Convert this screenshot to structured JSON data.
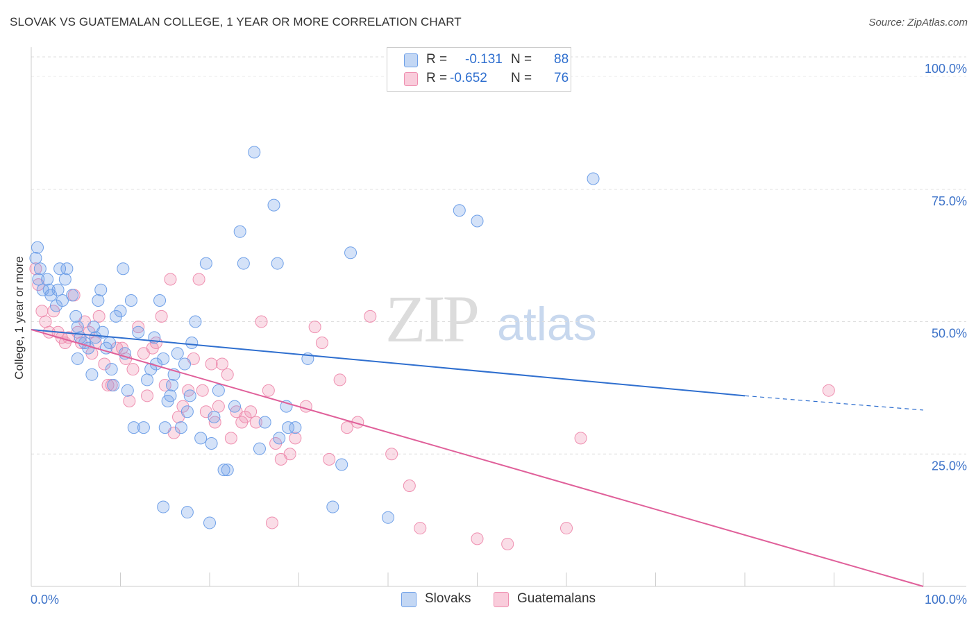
{
  "title": "SLOVAK VS GUATEMALAN COLLEGE, 1 YEAR OR MORE CORRELATION CHART",
  "source": "Source: ZipAtlas.com",
  "watermark": {
    "zip": "ZIP",
    "atlas": "atlas"
  },
  "legend": {
    "rows": [
      {
        "r_label": "R =",
        "r_value": "-0.131",
        "n_label": "N =",
        "n_value": "88",
        "color": "#6fa0e8"
      },
      {
        "r_label": "R =",
        "r_value": "-0.652",
        "n_label": "N =",
        "n_value": "76",
        "color": "#ef8fb0"
      }
    ]
  },
  "bottom_legend": [
    {
      "label": "Slovaks",
      "color": "#6fa0e8"
    },
    {
      "label": "Guatemalans",
      "color": "#ef8fb0"
    }
  ],
  "chart_data": {
    "type": "scatter",
    "title": "SLOVAK VS GUATEMALAN COLLEGE, 1 YEAR OR MORE CORRELATION CHART",
    "xlabel": "",
    "ylabel": "College, 1 year or more",
    "xlim": [
      0,
      100
    ],
    "ylim": [
      0,
      100
    ],
    "x_tick_labels": [
      "0.0%",
      "100.0%"
    ],
    "y_ticks": [
      25,
      50,
      75,
      100
    ],
    "y_tick_labels": [
      "25.0%",
      "50.0%",
      "75.0%",
      "100.0%"
    ],
    "grid": true,
    "series": [
      {
        "name": "Slovaks",
        "color": "#6fa0e8",
        "line_color": "#2f6fcf",
        "trend": {
          "x_start": 0,
          "y_start": 48.5,
          "x_end": 80,
          "y_end": 36.0,
          "dash_to_x": 100,
          "dash_y_end": 33.3
        },
        "points": [
          [
            0.5,
            62
          ],
          [
            0.7,
            64
          ],
          [
            0.8,
            58
          ],
          [
            1,
            60
          ],
          [
            1.3,
            56
          ],
          [
            1.8,
            58
          ],
          [
            2,
            56
          ],
          [
            2.2,
            55
          ],
          [
            2.8,
            53
          ],
          [
            3.2,
            60
          ],
          [
            3.5,
            54
          ],
          [
            3.8,
            58
          ],
          [
            4,
            60
          ],
          [
            4.6,
            55
          ],
          [
            5,
            51
          ],
          [
            5.2,
            49
          ],
          [
            5.5,
            47
          ],
          [
            6,
            46
          ],
          [
            6.4,
            45
          ],
          [
            7,
            49
          ],
          [
            7.2,
            47
          ],
          [
            7.5,
            54
          ],
          [
            7.8,
            56
          ],
          [
            8,
            48
          ],
          [
            8.4,
            45
          ],
          [
            8.8,
            46
          ],
          [
            9,
            41
          ],
          [
            9.5,
            51
          ],
          [
            10,
            52
          ],
          [
            10.3,
            60
          ],
          [
            10.5,
            44
          ],
          [
            10.8,
            37
          ],
          [
            11.2,
            54
          ],
          [
            11.5,
            30
          ],
          [
            12,
            48
          ],
          [
            12.6,
            30
          ],
          [
            13,
            39
          ],
          [
            13.4,
            41
          ],
          [
            13.8,
            47
          ],
          [
            14,
            42
          ],
          [
            14.4,
            54
          ],
          [
            14.8,
            43
          ],
          [
            15,
            30
          ],
          [
            15.3,
            35
          ],
          [
            15.6,
            36
          ],
          [
            15.8,
            38
          ],
          [
            16,
            40
          ],
          [
            16.4,
            44
          ],
          [
            16.8,
            30
          ],
          [
            17.2,
            42
          ],
          [
            17.5,
            33
          ],
          [
            17.8,
            36
          ],
          [
            18,
            46
          ],
          [
            18.4,
            50
          ],
          [
            19,
            28
          ],
          [
            19.6,
            61
          ],
          [
            20.2,
            27
          ],
          [
            20.5,
            32
          ],
          [
            21,
            37
          ],
          [
            21.6,
            22
          ],
          [
            22,
            22
          ],
          [
            22.8,
            34
          ],
          [
            23.4,
            67
          ],
          [
            23.8,
            61
          ],
          [
            25,
            82
          ],
          [
            25.6,
            26
          ],
          [
            26.2,
            31
          ],
          [
            27.2,
            72
          ],
          [
            27.6,
            61
          ],
          [
            27.8,
            28
          ],
          [
            28.6,
            34
          ],
          [
            28.8,
            30
          ],
          [
            29.6,
            30
          ],
          [
            31,
            43
          ],
          [
            33.8,
            15
          ],
          [
            34.8,
            23
          ],
          [
            35.8,
            63
          ],
          [
            40,
            13
          ],
          [
            48,
            71
          ],
          [
            50,
            69
          ],
          [
            63,
            77
          ],
          [
            14.8,
            15
          ],
          [
            17.5,
            14
          ],
          [
            20,
            12
          ],
          [
            9.2,
            38
          ],
          [
            6.8,
            40
          ],
          [
            5.2,
            43
          ],
          [
            3,
            56
          ]
        ]
      },
      {
        "name": "Guatemalans",
        "color": "#ef8fb0",
        "line_color": "#e0609a",
        "trend": {
          "x_start": 0,
          "y_start": 48.5,
          "x_end": 100,
          "y_end": 0
        },
        "points": [
          [
            0.5,
            60
          ],
          [
            0.8,
            57
          ],
          [
            1.2,
            52
          ],
          [
            1.6,
            50
          ],
          [
            2,
            48
          ],
          [
            2.5,
            52
          ],
          [
            3,
            48
          ],
          [
            3.4,
            47
          ],
          [
            3.8,
            46
          ],
          [
            4.2,
            47
          ],
          [
            4.8,
            55
          ],
          [
            5.2,
            48
          ],
          [
            5.6,
            46
          ],
          [
            6,
            50
          ],
          [
            6.5,
            48
          ],
          [
            6.8,
            44
          ],
          [
            7.2,
            46
          ],
          [
            7.6,
            51
          ],
          [
            8.2,
            42
          ],
          [
            8.6,
            38
          ],
          [
            9,
            38
          ],
          [
            9.6,
            45
          ],
          [
            10.2,
            45
          ],
          [
            10.6,
            43
          ],
          [
            11,
            35
          ],
          [
            11.4,
            41
          ],
          [
            12,
            49
          ],
          [
            12.6,
            44
          ],
          [
            13,
            36
          ],
          [
            13.6,
            45
          ],
          [
            14,
            46
          ],
          [
            14.6,
            51
          ],
          [
            15,
            38
          ],
          [
            15.6,
            58
          ],
          [
            16,
            29
          ],
          [
            16.5,
            32
          ],
          [
            17,
            34
          ],
          [
            17.6,
            37
          ],
          [
            18.2,
            43
          ],
          [
            18.8,
            58
          ],
          [
            19.2,
            37
          ],
          [
            19.6,
            33
          ],
          [
            20.2,
            42
          ],
          [
            20.6,
            31
          ],
          [
            21,
            34
          ],
          [
            21.4,
            42
          ],
          [
            22,
            40
          ],
          [
            22.4,
            28
          ],
          [
            23,
            33
          ],
          [
            23.6,
            31
          ],
          [
            24,
            32
          ],
          [
            24.6,
            33
          ],
          [
            25.2,
            31
          ],
          [
            25.8,
            50
          ],
          [
            26.6,
            37
          ],
          [
            27.4,
            27
          ],
          [
            28,
            24
          ],
          [
            29,
            25
          ],
          [
            29.6,
            28
          ],
          [
            30.8,
            34
          ],
          [
            31.8,
            49
          ],
          [
            32.6,
            46
          ],
          [
            33.4,
            24
          ],
          [
            34.6,
            39
          ],
          [
            35.4,
            30
          ],
          [
            36.6,
            31
          ],
          [
            38,
            51
          ],
          [
            40.4,
            25
          ],
          [
            42.4,
            19
          ],
          [
            43.6,
            11
          ],
          [
            50,
            9
          ],
          [
            53.4,
            8
          ],
          [
            60,
            11
          ],
          [
            61.6,
            28
          ],
          [
            89.4,
            37
          ],
          [
            27,
            12
          ]
        ]
      }
    ]
  }
}
